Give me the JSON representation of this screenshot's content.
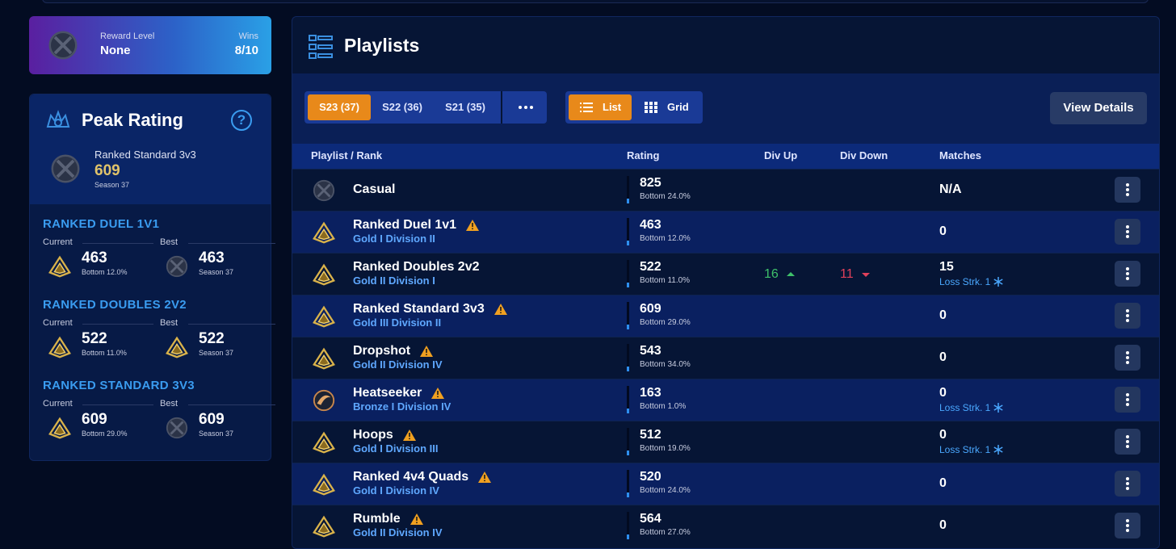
{
  "reward": {
    "label": "Reward Level",
    "value": "None",
    "wins_label": "Wins",
    "wins": "8/10"
  },
  "peak": {
    "title": "Peak Rating",
    "help": "?",
    "playlist": "Ranked Standard 3v3",
    "rating": "609",
    "season": "Season 37",
    "sections": [
      {
        "title": "RANKED DUEL 1V1",
        "current_label": "Current",
        "best_label": "Best",
        "current": {
          "rating": "463",
          "note": "Bottom 12.0%",
          "icon": "gold"
        },
        "best": {
          "rating": "463",
          "note": "Season 37",
          "icon": "unranked"
        }
      },
      {
        "title": "RANKED DOUBLES 2V2",
        "current_label": "Current",
        "best_label": "Best",
        "current": {
          "rating": "522",
          "note": "Bottom 11.0%",
          "icon": "gold"
        },
        "best": {
          "rating": "522",
          "note": "Season 37",
          "icon": "gold"
        }
      },
      {
        "title": "RANKED STANDARD 3V3",
        "current_label": "Current",
        "best_label": "Best",
        "current": {
          "rating": "609",
          "note": "Bottom 29.0%",
          "icon": "gold"
        },
        "best": {
          "rating": "609",
          "note": "Season 37",
          "icon": "unranked"
        }
      }
    ]
  },
  "playlists": {
    "title": "Playlists",
    "seasons": [
      "S23 (37)",
      "S22 (36)",
      "S21 (35)"
    ],
    "views": [
      "List",
      "Grid"
    ],
    "details": "View Details",
    "columns": [
      "Playlist / Rank",
      "Rating",
      "Div Up",
      "Div Down",
      "Matches"
    ],
    "rows": [
      {
        "name": "Casual",
        "rating": "825",
        "note": "Bottom 24.0%",
        "matches": "N/A",
        "icon": "unranked"
      },
      {
        "name": "Ranked Duel 1v1",
        "rank": "Gold I Division II",
        "rating": "463",
        "note": "Bottom 12.0%",
        "matches": "0",
        "icon": "gold",
        "warning": true
      },
      {
        "name": "Ranked Doubles 2v2",
        "rank": "Gold II Division I",
        "rating": "522",
        "note": "Bottom 11.0%",
        "div_up": "16",
        "div_down": "11",
        "matches": "15",
        "streak": "Loss Strk. 1",
        "icon": "gold"
      },
      {
        "name": "Ranked Standard 3v3",
        "rank": "Gold III Division II",
        "rating": "609",
        "note": "Bottom 29.0%",
        "matches": "0",
        "icon": "gold",
        "warning": true
      },
      {
        "name": "Dropshot",
        "rank": "Gold II Division IV",
        "rating": "543",
        "note": "Bottom 34.0%",
        "matches": "0",
        "icon": "gold",
        "warning": true
      },
      {
        "name": "Heatseeker",
        "rank": "Bronze I Division IV",
        "rating": "163",
        "note": "Bottom 1.0%",
        "matches": "0",
        "streak": "Loss Strk. 1",
        "icon": "bronze",
        "warning": true
      },
      {
        "name": "Hoops",
        "rank": "Gold I Division III",
        "rating": "512",
        "note": "Bottom 19.0%",
        "matches": "0",
        "streak": "Loss Strk. 1",
        "icon": "gold",
        "warning": true
      },
      {
        "name": "Ranked 4v4 Quads",
        "rank": "Gold I Division IV",
        "rating": "520",
        "note": "Bottom 24.0%",
        "matches": "0",
        "icon": "gold",
        "warning": true
      },
      {
        "name": "Rumble",
        "rank": "Gold II Division IV",
        "rating": "564",
        "note": "Bottom 27.0%",
        "matches": "0",
        "icon": "gold",
        "warning": true
      }
    ]
  }
}
